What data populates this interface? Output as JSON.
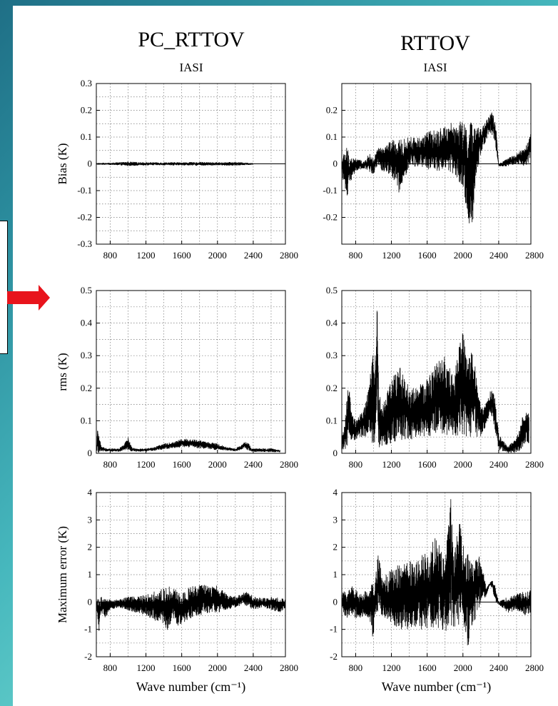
{
  "colors": {
    "background_gradient": [
      "#1f6f86",
      "#a8f4e6"
    ],
    "panel": "#ffffff",
    "arrow": "#e8141c",
    "trace": "#000000"
  },
  "columns": [
    {
      "title": "PC_RTTOV",
      "subtitle": "IASI"
    },
    {
      "title": "RTTOV",
      "subtitle": "IASI"
    }
  ],
  "chart_data": [
    {
      "type": "line",
      "column": "PC_RTTOV",
      "title": "PC_RTTOV",
      "subtitle": "IASI",
      "ylabel": "Bias (K)",
      "xlabel": "",
      "xlim": [
        645,
        2760
      ],
      "ylim": [
        -0.3,
        0.3
      ],
      "xticks": [
        800,
        1200,
        1600,
        2000,
        2400,
        2800
      ],
      "yticks": [
        -0.3,
        -0.2,
        -0.1,
        0,
        0.1,
        0.2,
        0.3
      ],
      "ytick_labels": [
        "-0.3",
        "-0.2",
        "-0.1",
        "0",
        "0.1",
        "0.2",
        "0.3"
      ],
      "zero_line": true,
      "grid": "dotted",
      "series": [
        {
          "x": [
            645,
            800,
            1000,
            1200,
            1400,
            1600,
            1800,
            2000,
            2200,
            2400
          ],
          "y_upper": [
            0.003,
            0.004,
            0.008,
            0.006,
            0.006,
            0.006,
            0.007,
            0.006,
            0.007,
            0.003
          ],
          "y_lower": [
            -0.003,
            -0.004,
            -0.008,
            -0.006,
            -0.006,
            -0.006,
            -0.007,
            -0.006,
            -0.007,
            -0.003
          ]
        }
      ]
    },
    {
      "type": "line",
      "column": "RTTOV",
      "title": "RTTOV",
      "subtitle": "IASI",
      "ylabel": "",
      "xlabel": "",
      "xlim": [
        645,
        2760
      ],
      "ylim": [
        -0.3,
        0.3
      ],
      "xticks": [
        800,
        1200,
        1600,
        2000,
        2400,
        2800
      ],
      "yticks": [
        -0.2,
        -0.1,
        0,
        0.1,
        0.2
      ],
      "ytick_labels": [
        "-0.2",
        "-0.1",
        "0",
        "0.1",
        "0.2"
      ],
      "zero_line": true,
      "grid": "dotted",
      "series": [
        {
          "x": [
            645,
            700,
            740,
            800,
            900,
            950,
            1000,
            1050,
            1100,
            1200,
            1300,
            1400,
            1500,
            1600,
            1700,
            1800,
            1900,
            2000,
            2050,
            2100,
            2150,
            2200,
            2260,
            2300,
            2330,
            2370,
            2400,
            2500,
            2600,
            2700,
            2760
          ],
          "y_upper": [
            0.02,
            0.07,
            0.03,
            0.02,
            0.01,
            0.04,
            0.02,
            0.06,
            0.06,
            0.09,
            0.09,
            0.1,
            0.1,
            0.12,
            0.13,
            0.14,
            0.16,
            0.16,
            0.15,
            0.16,
            0.14,
            0.13,
            0.17,
            0.18,
            0.21,
            0.14,
            0.0,
            0.02,
            0.04,
            0.06,
            0.12
          ],
          "y_lower": [
            -0.03,
            -0.15,
            -0.07,
            -0.03,
            -0.02,
            -0.03,
            -0.04,
            0.0,
            -0.03,
            -0.04,
            -0.12,
            -0.01,
            -0.01,
            -0.02,
            -0.03,
            -0.02,
            -0.05,
            -0.09,
            -0.2,
            -0.27,
            -0.05,
            0.04,
            0.09,
            0.12,
            0.1,
            0.05,
            -0.01,
            -0.01,
            0.0,
            -0.01,
            0.01
          ]
        }
      ]
    },
    {
      "type": "line",
      "column": "PC_RTTOV",
      "title": "",
      "subtitle": "",
      "ylabel": "rms (K)",
      "xlabel": "",
      "xlim": [
        645,
        2760
      ],
      "ylim": [
        0,
        0.5
      ],
      "xticks": [
        800,
        1200,
        1600,
        2000,
        2400,
        2800
      ],
      "yticks": [
        0,
        0.1,
        0.2,
        0.3,
        0.4,
        0.5
      ],
      "ytick_labels": [
        "0",
        "0.1",
        "0.2",
        "0.3",
        "0.4",
        "0.5"
      ],
      "zero_line": false,
      "grid": "dotted",
      "series": [
        {
          "x": [
            645,
            660,
            700,
            800,
            900,
            960,
            1000,
            1040,
            1100,
            1200,
            1300,
            1400,
            1500,
            1600,
            1700,
            1800,
            1900,
            2000,
            2100,
            2200,
            2260,
            2300,
            2340,
            2380,
            2400,
            2500,
            2600,
            2700
          ],
          "y_upper": [
            0.015,
            0.08,
            0.02,
            0.015,
            0.015,
            0.03,
            0.05,
            0.02,
            0.015,
            0.015,
            0.02,
            0.03,
            0.035,
            0.045,
            0.045,
            0.04,
            0.035,
            0.03,
            0.02,
            0.015,
            0.025,
            0.035,
            0.035,
            0.015,
            0.015,
            0.015,
            0.015,
            0.01
          ],
          "y_lower": [
            0.0,
            0.0,
            0.005,
            0.005,
            0.005,
            0.01,
            0.01,
            0.005,
            0.005,
            0.005,
            0.008,
            0.012,
            0.015,
            0.018,
            0.018,
            0.015,
            0.012,
            0.01,
            0.008,
            0.006,
            0.01,
            0.015,
            0.01,
            0.005,
            0.004,
            0.004,
            0.004,
            0.003
          ]
        }
      ]
    },
    {
      "type": "line",
      "column": "RTTOV",
      "title": "",
      "subtitle": "",
      "ylabel": "",
      "xlabel": "",
      "xlim": [
        645,
        2760
      ],
      "ylim": [
        0,
        0.5
      ],
      "xticks": [
        800,
        1200,
        1600,
        2000,
        2400,
        2800
      ],
      "yticks": [
        0,
        0.1,
        0.2,
        0.3,
        0.4,
        0.5
      ],
      "ytick_labels": [
        "0",
        "0.1",
        "0.2",
        "0.3",
        "0.4",
        "0.5"
      ],
      "zero_line": false,
      "grid": "dotted",
      "series": [
        {
          "x": [
            645,
            680,
            720,
            760,
            800,
            850,
            900,
            950,
            990,
            1010,
            1040,
            1060,
            1100,
            1200,
            1300,
            1400,
            1500,
            1600,
            1700,
            1800,
            1900,
            1960,
            2000,
            2050,
            2100,
            2150,
            2200,
            2250,
            2300,
            2330,
            2360,
            2400,
            2500,
            2600,
            2650,
            2700,
            2740
          ],
          "y_upper": [
            0.05,
            0.1,
            0.22,
            0.12,
            0.1,
            0.12,
            0.15,
            0.2,
            0.38,
            0.25,
            0.47,
            0.2,
            0.14,
            0.23,
            0.27,
            0.2,
            0.21,
            0.23,
            0.28,
            0.3,
            0.23,
            0.35,
            0.4,
            0.28,
            0.32,
            0.25,
            0.14,
            0.15,
            0.19,
            0.2,
            0.17,
            0.06,
            0.02,
            0.05,
            0.1,
            0.14,
            0.13
          ],
          "y_lower": [
            0.01,
            0.01,
            0.03,
            0.04,
            0.04,
            0.05,
            0.05,
            0.05,
            0.03,
            0.02,
            0.1,
            0.01,
            0.02,
            0.03,
            0.04,
            0.04,
            0.05,
            0.05,
            0.05,
            0.05,
            0.05,
            0.05,
            0.05,
            0.05,
            0.05,
            0.05,
            0.05,
            0.08,
            0.12,
            0.1,
            0.06,
            0.01,
            0.0,
            0.0,
            0.01,
            0.02,
            0.03
          ]
        }
      ]
    },
    {
      "type": "line",
      "column": "PC_RTTOV",
      "title": "",
      "subtitle": "",
      "ylabel": "Maximum error (K)",
      "xlabel": "Wave number (cm⁻¹)",
      "xlim": [
        645,
        2760
      ],
      "ylim": [
        -2,
        4
      ],
      "xticks": [
        800,
        1200,
        1600,
        2000,
        2400,
        2800
      ],
      "yticks": [
        -2,
        -1,
        0,
        1,
        2,
        3,
        4
      ],
      "ytick_labels": [
        "-2",
        "-1",
        "0",
        "1",
        "2",
        "3",
        "4"
      ],
      "zero_line": true,
      "grid": "dotted",
      "series": [
        {
          "x": [
            645,
            670,
            700,
            750,
            800,
            900,
            1000,
            1100,
            1200,
            1300,
            1400,
            1450,
            1500,
            1550,
            1600,
            1700,
            1800,
            1900,
            2000,
            2100,
            2200,
            2300,
            2350,
            2400,
            2500,
            2600,
            2700,
            2760
          ],
          "y_upper": [
            0.1,
            0.3,
            0.2,
            0.1,
            0.1,
            0.1,
            0.2,
            0.2,
            0.3,
            0.4,
            0.5,
            0.6,
            0.55,
            0.4,
            0.3,
            0.6,
            0.65,
            0.6,
            0.6,
            0.3,
            0.2,
            0.35,
            0.4,
            0.2,
            0.15,
            0.2,
            0.15,
            0.1
          ],
          "y_lower": [
            -0.1,
            -1.2,
            -0.4,
            -0.6,
            -0.3,
            -0.2,
            -0.3,
            -0.4,
            -0.5,
            -0.7,
            -0.8,
            -1.1,
            -0.6,
            -0.9,
            -0.8,
            -0.6,
            -0.5,
            -0.4,
            -0.4,
            -0.3,
            -0.2,
            -0.1,
            -0.2,
            -0.3,
            -0.2,
            -0.3,
            -0.4,
            -0.2
          ]
        }
      ]
    },
    {
      "type": "line",
      "column": "RTTOV",
      "title": "",
      "subtitle": "",
      "ylabel": "",
      "xlabel": "Wave number (cm⁻¹)",
      "xlim": [
        645,
        2760
      ],
      "ylim": [
        -2,
        4
      ],
      "xticks": [
        800,
        1200,
        1600,
        2000,
        2400,
        2800
      ],
      "yticks": [
        -2,
        -1,
        0,
        1,
        2,
        3,
        4
      ],
      "ytick_labels": [
        "-2",
        "-1",
        "0",
        "1",
        "2",
        "3",
        "4"
      ],
      "zero_line": true,
      "grid": "dotted",
      "series": [
        {
          "x": [
            645,
            700,
            750,
            800,
            850,
            900,
            950,
            990,
            1010,
            1050,
            1100,
            1200,
            1300,
            1400,
            1500,
            1600,
            1700,
            1800,
            1860,
            1900,
            1960,
            2000,
            2050,
            2090,
            2150,
            2200,
            2260,
            2300,
            2330,
            2360,
            2400,
            2500,
            2600,
            2700,
            2760
          ],
          "y_upper": [
            0.3,
            0.5,
            0.6,
            0.5,
            0.3,
            0.4,
            0.5,
            0.7,
            0.6,
            2.0,
            0.9,
            1.2,
            1.4,
            1.5,
            1.6,
            1.9,
            2.4,
            1.7,
            4.0,
            1.7,
            3.2,
            2.1,
            1.9,
            1.5,
            1.6,
            1.7,
            0.5,
            0.7,
            0.8,
            0.6,
            0.0,
            0.2,
            0.3,
            0.4,
            0.45
          ],
          "y_lower": [
            -0.2,
            -0.7,
            -0.4,
            -0.6,
            -0.6,
            -0.5,
            -0.6,
            -1.3,
            -1.0,
            -0.3,
            -0.6,
            -0.9,
            -1.0,
            -1.0,
            -1.0,
            -1.1,
            -0.9,
            -1.1,
            -0.9,
            -1.0,
            -0.8,
            -0.8,
            -1.8,
            -1.0,
            -0.6,
            0.0,
            0.2,
            0.6,
            0.5,
            0.0,
            -0.1,
            -0.4,
            -0.3,
            -0.5,
            -0.4
          ]
        }
      ]
    }
  ]
}
